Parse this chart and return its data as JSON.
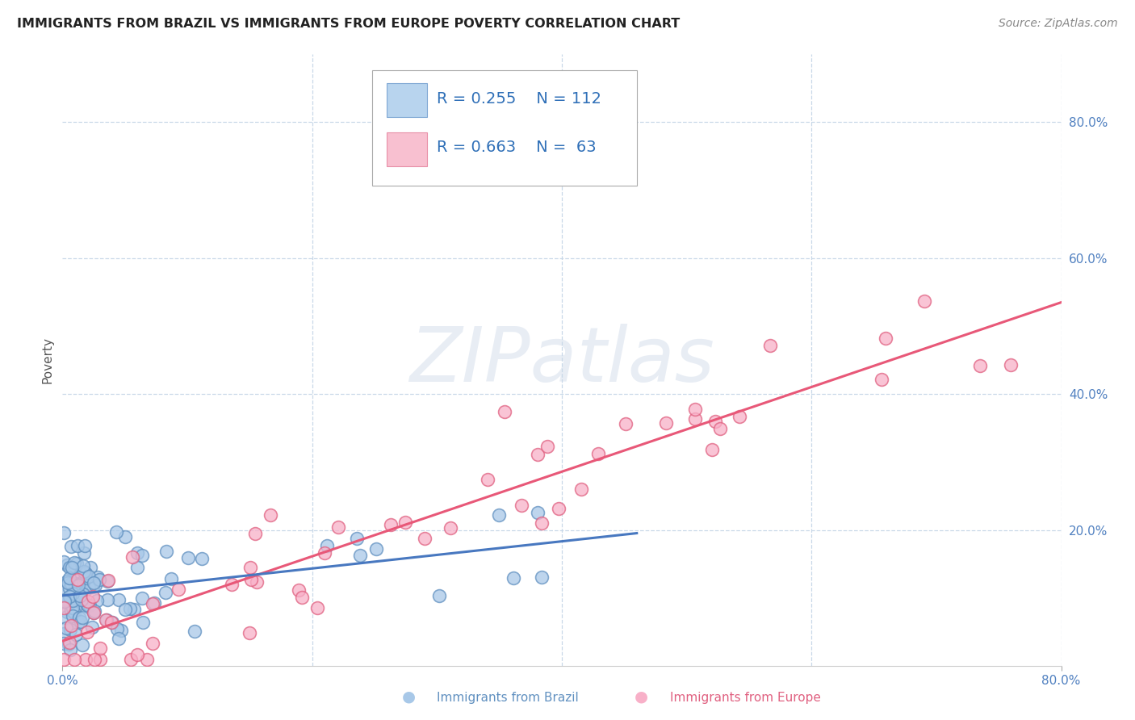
{
  "title": "IMMIGRANTS FROM BRAZIL VS IMMIGRANTS FROM EUROPE POVERTY CORRELATION CHART",
  "source": "Source: ZipAtlas.com",
  "ylabel": "Poverty",
  "brazil_scatter_color": "#a8c8e8",
  "brazil_scatter_edge": "#6090c0",
  "europe_scatter_color": "#f8b0c8",
  "europe_scatter_edge": "#e06080",
  "brazil_line_color": "#4878c0",
  "europe_line_color": "#e85878",
  "brazil_legend_fill": "#b8d4ee",
  "brazil_legend_edge": "#80a8d4",
  "europe_legend_fill": "#f8c0d0",
  "europe_legend_edge": "#e890a8",
  "grid_color": "#c8d8e8",
  "tick_color": "#5080c0",
  "title_color": "#222222",
  "source_color": "#888888",
  "watermark_color": "#ccd8e8",
  "xlim": [
    0.0,
    0.8
  ],
  "ylim": [
    0.0,
    0.9
  ],
  "bg_color": "#ffffff",
  "label_brazil": "Immigrants from Brazil",
  "label_europe": "Immigrants from Europe",
  "watermark_text": "ZIPatlas",
  "legend_r1": "R = 0.255",
  "legend_n1": "N = 112",
  "legend_r2": "R = 0.663",
  "legend_n2": "N =  63"
}
